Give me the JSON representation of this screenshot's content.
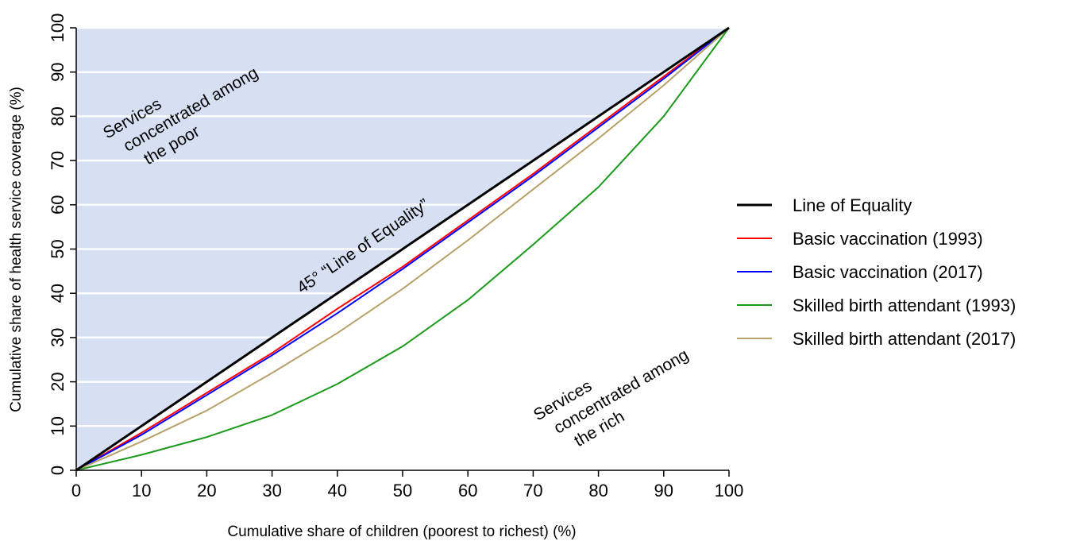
{
  "chart_data": {
    "type": "line",
    "title": "",
    "xlabel": "Cumulative share of children (poorest to richest) (%)",
    "ylabel": "Cumulative share of health service coverage (%)",
    "xlim": [
      0,
      100
    ],
    "ylim": [
      0,
      100
    ],
    "xticks": [
      0,
      10,
      20,
      30,
      40,
      50,
      60,
      70,
      80,
      90,
      100
    ],
    "yticks": [
      0,
      10,
      20,
      30,
      40,
      50,
      60,
      70,
      80,
      90,
      100
    ],
    "grid": "horizontal",
    "legend_position": "right",
    "shaded_region": {
      "label": "upper triangle above line of equality",
      "color": "#d6e0f2"
    },
    "series": [
      {
        "name": "Line of Equality",
        "color": "#000000",
        "x": [
          0,
          100
        ],
        "y": [
          0,
          100
        ]
      },
      {
        "name": "Basic vaccination (1993)",
        "color": "#ff0000",
        "x": [
          0,
          10,
          20,
          30,
          40,
          50,
          60,
          70,
          80,
          90,
          100
        ],
        "y": [
          0,
          8.5,
          17.5,
          26.5,
          36.5,
          46,
          56.5,
          67,
          78,
          89,
          100
        ]
      },
      {
        "name": "Basic vaccination (2017)",
        "color": "#0000ff",
        "x": [
          0,
          10,
          20,
          30,
          40,
          50,
          60,
          70,
          80,
          90,
          100
        ],
        "y": [
          0,
          8,
          17,
          26,
          35.5,
          45.5,
          56,
          66.5,
          77.5,
          88.5,
          100
        ]
      },
      {
        "name": "Skilled birth attendant (1993)",
        "color": "#1a9a1a",
        "x": [
          0,
          10,
          20,
          30,
          40,
          50,
          60,
          70,
          80,
          90,
          100
        ],
        "y": [
          0,
          3.5,
          7.5,
          12.5,
          19.5,
          28,
          38.5,
          51,
          64,
          80,
          100
        ]
      },
      {
        "name": "Skilled birth attendant (2017)",
        "color": "#b8a26a",
        "x": [
          0,
          10,
          20,
          30,
          40,
          50,
          60,
          70,
          80,
          90,
          100
        ],
        "y": [
          0,
          6.5,
          13.5,
          22,
          31,
          41,
          52,
          63.5,
          75,
          87,
          100
        ]
      }
    ],
    "annotations": {
      "poor": [
        "Services",
        "concentrated among",
        "the poor"
      ],
      "rich": [
        "Services",
        "concentrated among",
        "the rich"
      ],
      "equality": "45° “Line of Equality”"
    }
  }
}
